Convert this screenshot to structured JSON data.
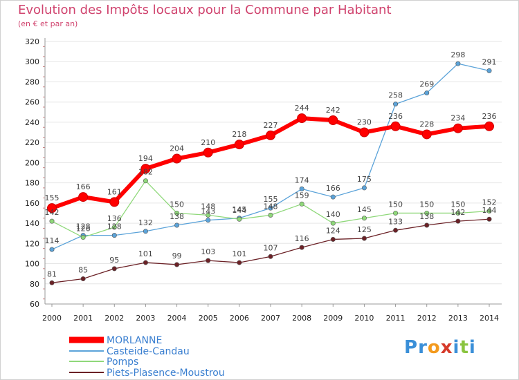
{
  "header": {
    "title": "Evolution des Impôts locaux pour la Commune par Habitant",
    "subtitle": "(en € et par an)"
  },
  "brand": {
    "logo_text": "Proxiti",
    "letters": [
      {
        "ch": "P",
        "color": "#3a8fd8"
      },
      {
        "ch": "r",
        "color": "#3a8fd8"
      },
      {
        "ch": "o",
        "color": "#f39a1e"
      },
      {
        "ch": "x",
        "color": "#d63a2a"
      },
      {
        "ch": "i",
        "color": "#3a8fd8"
      },
      {
        "ch": "t",
        "color": "#8ac43f"
      },
      {
        "ch": "i",
        "color": "#3a8fd8"
      }
    ]
  },
  "chart_data": {
    "type": "line",
    "title": "Evolution des Impôts locaux pour la Commune par Habitant",
    "subtitle": "(en € et par an)",
    "xlabel": "",
    "ylabel": "",
    "ylim": [
      60,
      320
    ],
    "yticks": [
      60,
      80,
      100,
      120,
      140,
      160,
      180,
      200,
      220,
      240,
      260,
      280,
      300,
      320
    ],
    "grid": "horizontal",
    "legend_position": "bottom-left",
    "x": [
      "2000",
      "2001",
      "2002",
      "2003",
      "2004",
      "2005",
      "2006",
      "2007",
      "2008",
      "2009",
      "2010",
      "2011",
      "2012",
      "2013",
      "2014"
    ],
    "series": [
      {
        "name": "MORLANNE",
        "color": "#ff0000",
        "values": [
          155,
          166,
          161,
          194,
          204,
          210,
          218,
          227,
          244,
          242,
          230,
          236,
          228,
          234,
          236
        ]
      },
      {
        "name": "Casteide-Candau",
        "color": "#5ba3d9",
        "values": [
          114,
          128,
          128,
          132,
          138,
          143,
          145,
          155,
          174,
          166,
          175,
          258,
          269,
          298,
          291
        ]
      },
      {
        "name": "Pomps",
        "color": "#8fd87a",
        "values": [
          142,
          126,
          136,
          182,
          150,
          148,
          144,
          148,
          159,
          140,
          145,
          150,
          150,
          150,
          152
        ]
      },
      {
        "name": "Piets-Plasence-Moustrou",
        "color": "#6b2126",
        "values": [
          81,
          85,
          95,
          101,
          99,
          103,
          101,
          107,
          116,
          124,
          125,
          133,
          138,
          142,
          144
        ]
      }
    ]
  }
}
